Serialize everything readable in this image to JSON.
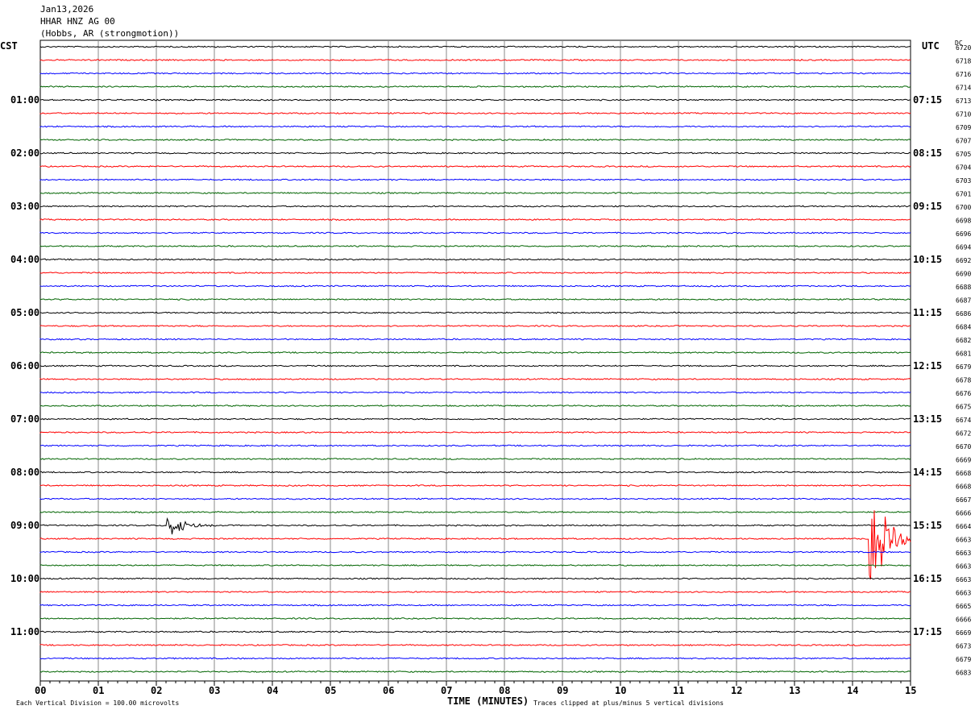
{
  "header": {
    "date": "Jan13,2026",
    "station": "HHAR HNZ AG 00",
    "location": "(Hobbs, AR (strongmotion))"
  },
  "chart_data": {
    "type": "line",
    "subtype": "helicorder",
    "left_timezone": "CST",
    "right_timezone": "UTC",
    "dc_header": "DC",
    "xlabel": "TIME (MINUTES)",
    "xlim": [
      0,
      15
    ],
    "x_ticks": [
      "00",
      "01",
      "02",
      "03",
      "04",
      "05",
      "06",
      "07",
      "08",
      "09",
      "10",
      "11",
      "12",
      "13",
      "14",
      "15"
    ],
    "left_labels": [
      "01:00",
      "02:00",
      "03:00",
      "04:00",
      "05:00",
      "06:00",
      "07:00",
      "08:00",
      "09:00",
      "10:00",
      "11:00"
    ],
    "right_labels": [
      "07:15",
      "08:15",
      "09:15",
      "10:15",
      "11:15",
      "12:15",
      "13:15",
      "14:15",
      "15:15",
      "16:15",
      "17:15"
    ],
    "trace_colors": [
      "#000000",
      "#ff0000",
      "#0000ff",
      "#006400"
    ],
    "dc_values": [
      6720,
      6718,
      6716,
      6714,
      6713,
      6710,
      6709,
      6707,
      6705,
      6704,
      6703,
      6701,
      6700,
      6698,
      6696,
      6694,
      6692,
      6690,
      6688,
      6687,
      6686,
      6684,
      6682,
      6681,
      6679,
      6678,
      6676,
      6675,
      6674,
      6672,
      6670,
      6669,
      6668,
      6668,
      6667,
      6666,
      6664,
      6663,
      6663,
      6663,
      6663,
      6663,
      6665,
      6666,
      6669,
      6673,
      6679,
      6683
    ],
    "events": [
      {
        "trace": 37,
        "minute": 14.3,
        "amplitude_divisions": 5,
        "clipped": true
      },
      {
        "trace": 36,
        "minute": 2.2,
        "amplitude_divisions": 1
      }
    ],
    "scale_note": "Each Vertical Division =  100.00 microvolts",
    "clip_note": "Traces clipped at plus/minus 5 vertical divisions"
  }
}
